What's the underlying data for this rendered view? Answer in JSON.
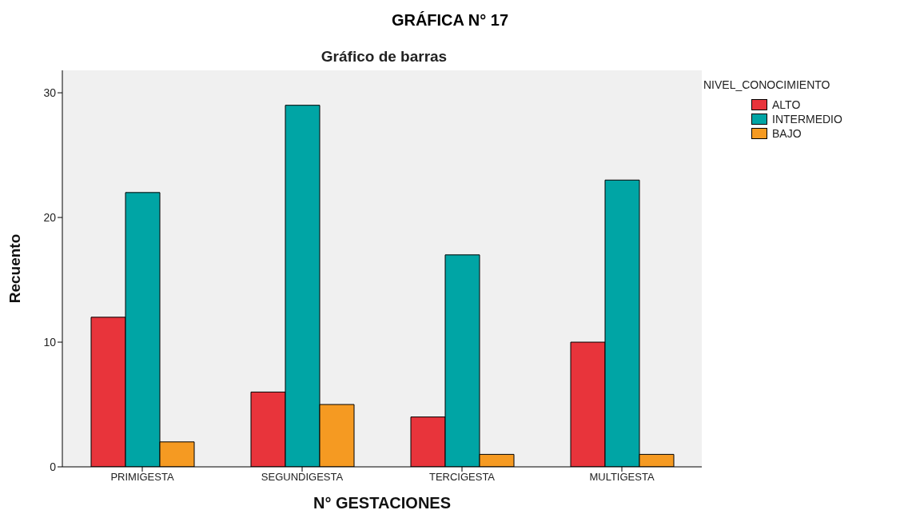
{
  "chart_data": {
    "type": "bar",
    "title": "GRÁFICA N° 17",
    "subtitle": "Gráfico de barras",
    "xlabel": "N° GESTACIONES",
    "ylabel": "Recuento",
    "legend_title": "NIVEL_CONOCIMIENTO",
    "legend": "top right",
    "grid": false,
    "categories": [
      "PRIMIGESTA",
      "SEGUNDIGESTA",
      "TERCIGESTA",
      "MULTIGESTA"
    ],
    "series": [
      {
        "name": "ALTO",
        "color": "#e8343b",
        "values": [
          12,
          6,
          4,
          10
        ]
      },
      {
        "name": "INTERMEDIO",
        "color": "#00a5a5",
        "values": [
          22,
          29,
          17,
          23
        ]
      },
      {
        "name": "BAJO",
        "color": "#f59a22",
        "values": [
          2,
          5,
          1,
          1
        ]
      }
    ],
    "ylim": [
      0,
      31.8
    ],
    "yticks": [
      0,
      10,
      20,
      30
    ]
  }
}
